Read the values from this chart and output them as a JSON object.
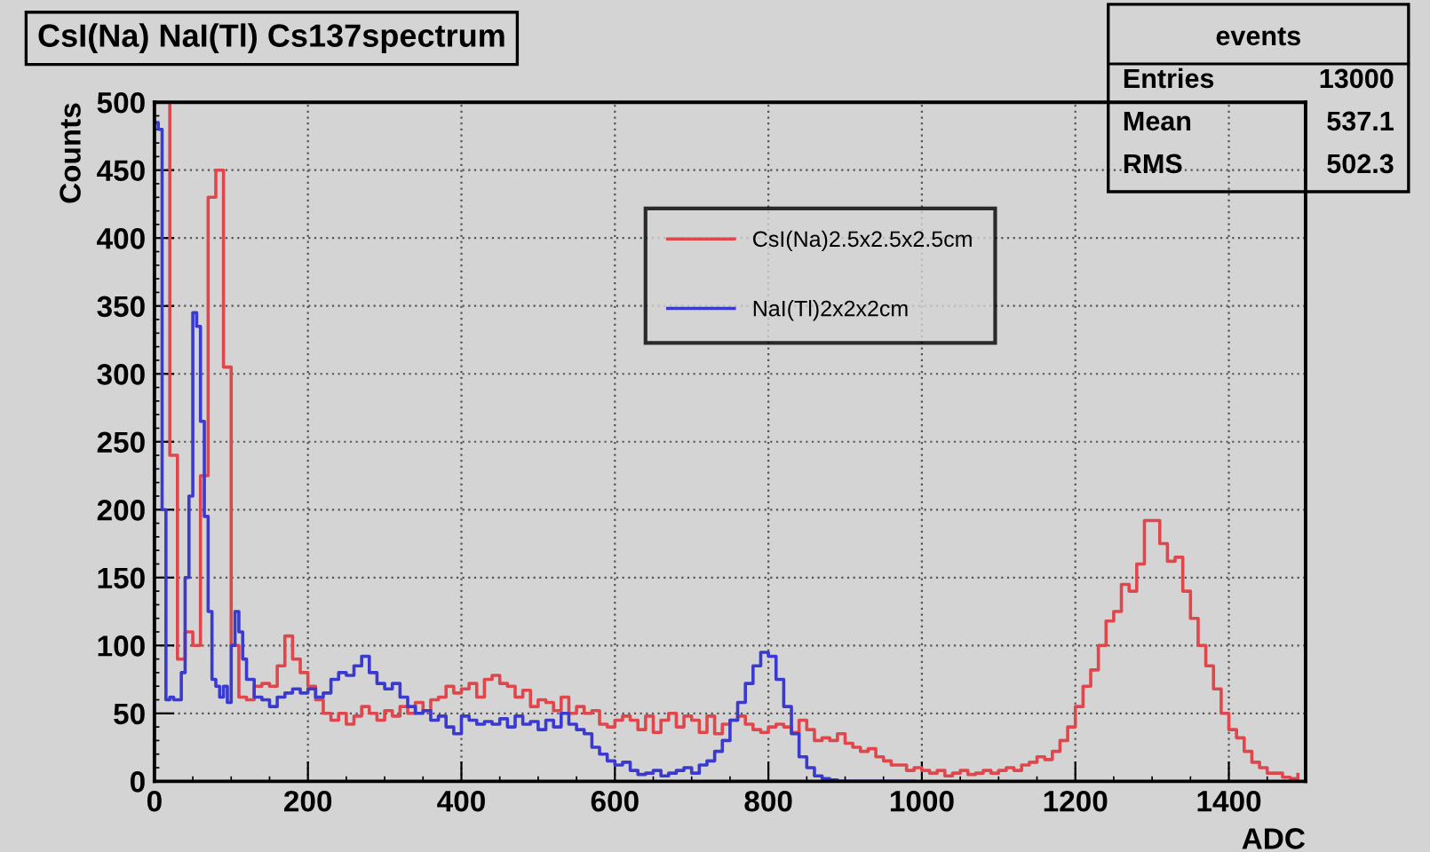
{
  "chart_data": {
    "type": "step",
    "title": "CsI(Na) NaI(Tl) Cs137spectrum",
    "xlabel": "ADC",
    "ylabel": "Counts",
    "xlim": [
      0,
      1500
    ],
    "xticks": [
      0,
      200,
      400,
      600,
      800,
      1000,
      1200,
      1400
    ],
    "ylim": [
      0,
      500
    ],
    "yticks": [
      0,
      50,
      100,
      150,
      200,
      250,
      300,
      350,
      400,
      450,
      500
    ],
    "grid": true,
    "legend": "top right",
    "annotations": [
      "events",
      "Entries",
      "13000",
      "Mean",
      "537.1",
      "RMS",
      "502.3"
    ],
    "series": [
      {
        "name": "CsI(Na)2.5x2.5x2.5cm",
        "color": "#e0474c",
        "x": [
          0,
          10,
          20,
          30,
          40,
          50,
          60,
          70,
          80,
          90,
          100,
          110,
          120,
          130,
          140,
          150,
          160,
          170,
          180,
          190,
          200,
          210,
          220,
          230,
          240,
          250,
          260,
          270,
          280,
          290,
          300,
          310,
          320,
          330,
          340,
          350,
          360,
          370,
          380,
          390,
          400,
          410,
          420,
          430,
          440,
          450,
          460,
          470,
          480,
          490,
          500,
          510,
          520,
          530,
          540,
          550,
          560,
          570,
          580,
          590,
          600,
          610,
          620,
          630,
          640,
          650,
          660,
          670,
          680,
          690,
          700,
          710,
          720,
          730,
          740,
          750,
          760,
          770,
          780,
          790,
          800,
          810,
          820,
          830,
          840,
          850,
          860,
          870,
          880,
          890,
          900,
          910,
          920,
          930,
          940,
          950,
          960,
          970,
          980,
          990,
          1000,
          1010,
          1020,
          1030,
          1040,
          1050,
          1060,
          1070,
          1080,
          1090,
          1100,
          1110,
          1120,
          1130,
          1140,
          1150,
          1160,
          1170,
          1180,
          1190,
          1200,
          1210,
          1220,
          1230,
          1240,
          1250,
          1260,
          1270,
          1280,
          1290,
          1300,
          1310,
          1320,
          1330,
          1340,
          1350,
          1360,
          1370,
          1380,
          1390,
          1400,
          1410,
          1420,
          1430,
          1440,
          1450,
          1460,
          1470,
          1480,
          1490
        ],
        "values": [
          500,
          500,
          240,
          90,
          110,
          100,
          225,
          430,
          450,
          305,
          100,
          62,
          60,
          70,
          72,
          70,
          85,
          107,
          90,
          80,
          70,
          60,
          50,
          45,
          50,
          42,
          48,
          55,
          50,
          45,
          52,
          48,
          55,
          50,
          58,
          52,
          60,
          62,
          70,
          65,
          68,
          72,
          62,
          75,
          78,
          72,
          70,
          62,
          67,
          55,
          60,
          58,
          52,
          62,
          50,
          55,
          50,
          52,
          42,
          40,
          45,
          48,
          45,
          38,
          48,
          36,
          45,
          50,
          40,
          48,
          45,
          36,
          48,
          35,
          42,
          45,
          48,
          42,
          38,
          36,
          40,
          42,
          40,
          36,
          45,
          38,
          30,
          32,
          30,
          35,
          28,
          25,
          22,
          24,
          18,
          15,
          12,
          12,
          8,
          10,
          8,
          6,
          8,
          4,
          6,
          8,
          5,
          6,
          8,
          6,
          8,
          10,
          8,
          12,
          14,
          18,
          16,
          22,
          30,
          40,
          55,
          70,
          82,
          100,
          118,
          125,
          145,
          140,
          160,
          192,
          192,
          175,
          162,
          165,
          140,
          120,
          100,
          85,
          68,
          50,
          38,
          32,
          22,
          14,
          10,
          6,
          6,
          3,
          2,
          5
        ]
      },
      {
        "name": "NaI(Tl)2x2x2cm",
        "color": "#3a3ad0",
        "x": [
          0,
          5,
          10,
          15,
          20,
          25,
          30,
          35,
          40,
          45,
          50,
          55,
          60,
          65,
          70,
          75,
          80,
          85,
          90,
          95,
          100,
          105,
          110,
          115,
          120,
          130,
          140,
          150,
          160,
          170,
          180,
          190,
          200,
          210,
          220,
          230,
          240,
          250,
          260,
          270,
          280,
          290,
          300,
          310,
          320,
          330,
          340,
          350,
          360,
          370,
          380,
          390,
          400,
          410,
          420,
          430,
          440,
          450,
          460,
          470,
          480,
          490,
          500,
          510,
          520,
          530,
          540,
          550,
          560,
          570,
          580,
          590,
          600,
          610,
          620,
          630,
          640,
          650,
          660,
          670,
          680,
          690,
          700,
          710,
          720,
          730,
          740,
          750,
          760,
          770,
          780,
          790,
          800,
          810,
          820,
          830,
          840,
          850,
          860,
          870,
          880,
          890,
          990
        ],
        "values": [
          485,
          480,
          200,
          60,
          62,
          60,
          60,
          80,
          150,
          210,
          345,
          335,
          265,
          195,
          125,
          75,
          70,
          62,
          70,
          58,
          100,
          125,
          110,
          90,
          75,
          62,
          60,
          55,
          62,
          65,
          68,
          65,
          68,
          62,
          65,
          75,
          80,
          78,
          85,
          92,
          80,
          72,
          68,
          72,
          62,
          55,
          50,
          52,
          45,
          48,
          40,
          35,
          48,
          45,
          42,
          44,
          42,
          46,
          40,
          48,
          42,
          44,
          38,
          45,
          40,
          50,
          42,
          38,
          35,
          25,
          20,
          15,
          12,
          14,
          8,
          5,
          6,
          8,
          4,
          6,
          8,
          10,
          6,
          12,
          15,
          22,
          30,
          45,
          58,
          72,
          85,
          95,
          92,
          75,
          55,
          35,
          18,
          10,
          4,
          2,
          1,
          0,
          0
        ]
      }
    ]
  }
}
